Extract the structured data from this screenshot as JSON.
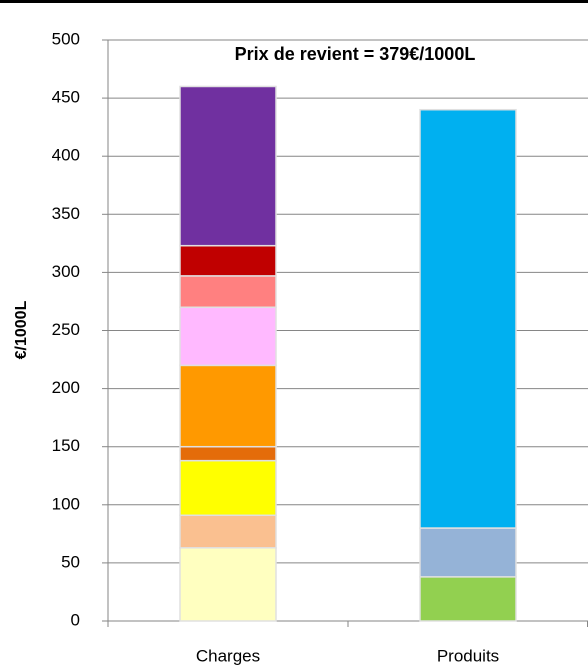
{
  "chart_data": {
    "type": "stacked_bar",
    "annotation": "Prix de revient =  379€/1000L",
    "y_label": "€/1000L",
    "categories": [
      "Charges",
      "Produits"
    ],
    "series": [
      {
        "color": "#ffffc0",
        "values": [
          63,
          null
        ]
      },
      {
        "color": "#fac090",
        "values": [
          28,
          null
        ]
      },
      {
        "color": "#ffff00",
        "values": [
          47,
          null
        ]
      },
      {
        "color": "#e46c0a",
        "values": [
          12,
          null
        ]
      },
      {
        "color": "#ff9900",
        "values": [
          70,
          null
        ]
      },
      {
        "color": "#ffb9ff",
        "values": [
          50,
          null
        ]
      },
      {
        "color": "#ff8080",
        "values": [
          27,
          null
        ]
      },
      {
        "color": "#c00000",
        "values": [
          26,
          null
        ]
      },
      {
        "color": "#7030a0",
        "values": [
          137,
          null
        ]
      },
      {
        "color": "#92d050",
        "values": [
          null,
          38
        ]
      },
      {
        "color": "#95b3d7",
        "values": [
          null,
          42
        ]
      },
      {
        "color": "#00b0f0",
        "values": [
          null,
          360
        ]
      }
    ],
    "ylim": [
      0,
      500
    ],
    "yticks": [
      0,
      50,
      100,
      150,
      200,
      250,
      300,
      350,
      400,
      450,
      500
    ],
    "grid": true
  }
}
